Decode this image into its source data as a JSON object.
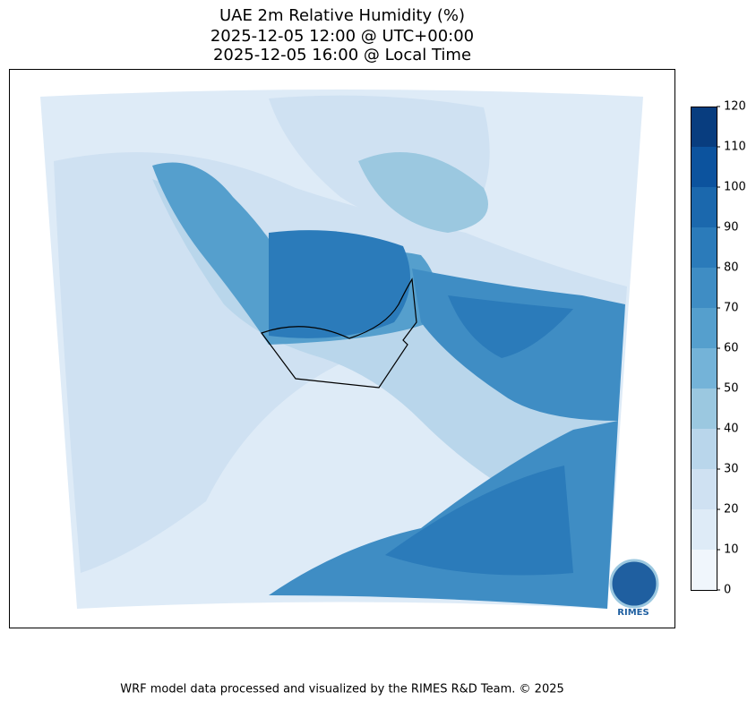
{
  "title_lines": [
    "UAE 2m Relative Humidity (%)",
    "2025-12-05 12:00 @ UTC+00:00",
    "2025-12-05 16:00 @ Local Time"
  ],
  "colorbar": {
    "lim": [
      0,
      120
    ],
    "ticks": [
      0,
      10,
      20,
      30,
      40,
      50,
      60,
      70,
      80,
      90,
      100,
      110,
      120
    ],
    "colors": [
      "#f0f6fc",
      "#deebf7",
      "#cfe1f2",
      "#b9d6eb",
      "#9bc8e0",
      "#74b3d8",
      "#559fcd",
      "#3f8dc4",
      "#2b7bba",
      "#1b68ad",
      "#0c539e",
      "#083d7f"
    ]
  },
  "logo": "RIMES",
  "footer": "WRF model data processed and visualized by the RIMES R&D Team. © 2025"
}
